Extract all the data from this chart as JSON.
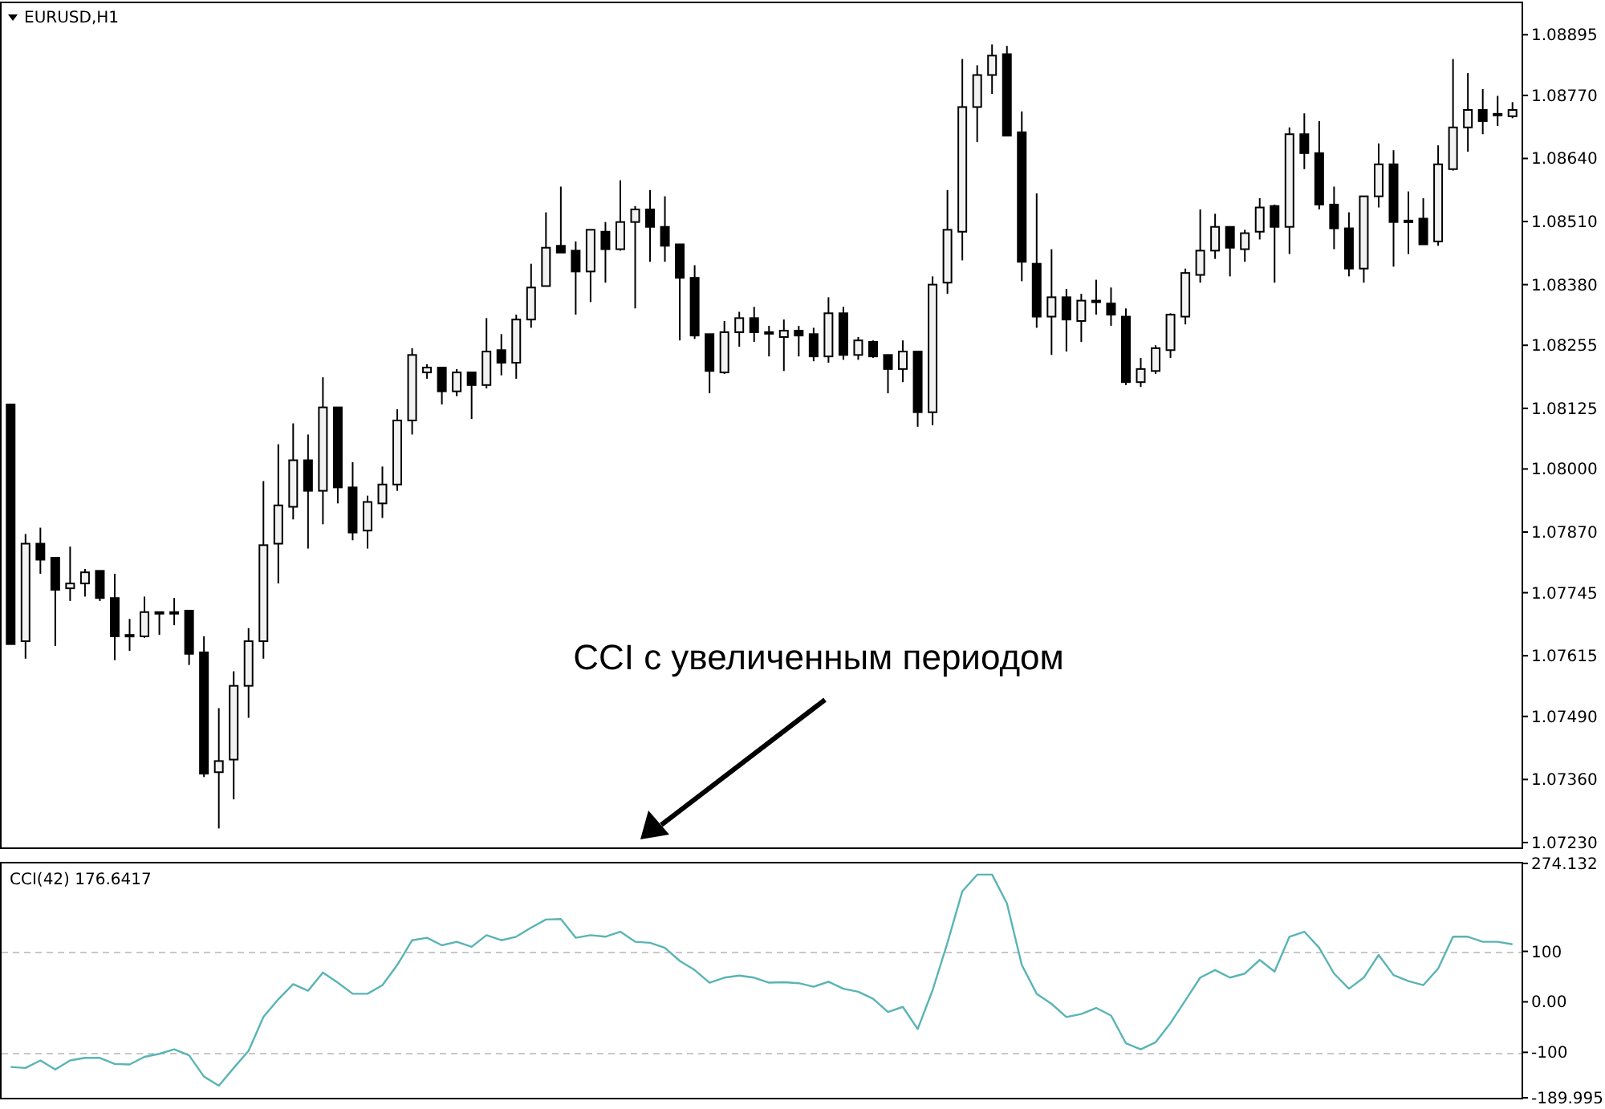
{
  "chart_data": [
    {
      "type": "candlestick",
      "title": "EURUSD,H1",
      "annotations": [
        "CCI с увеличенным периодом"
      ],
      "color": "#000000",
      "tick_labels": "y",
      "categories": [
        null,
        null,
        null,
        null,
        null,
        null,
        null,
        null,
        null,
        null,
        null,
        null,
        null,
        null,
        null,
        null,
        null,
        null,
        null,
        null,
        null,
        null,
        null,
        null,
        null,
        null,
        null,
        null,
        null,
        null,
        null,
        null,
        null,
        null,
        null,
        null,
        null,
        null,
        null,
        null,
        null,
        null,
        null,
        null,
        null,
        null,
        null,
        null,
        null,
        null,
        null,
        null,
        null,
        null,
        null,
        null,
        null,
        null,
        null,
        null,
        null,
        null,
        null,
        null,
        null,
        null,
        null,
        null,
        null,
        null,
        null,
        null,
        null,
        null,
        null,
        null,
        null,
        null,
        null,
        null,
        null,
        null,
        null,
        null,
        null,
        null,
        null,
        null,
        null,
        null,
        null,
        null,
        null,
        null,
        null,
        null,
        null,
        null,
        null,
        null,
        null,
        null
      ],
      "ohlc": [
        [
          1.08133,
          1.08133,
          1.07639,
          1.07639
        ],
        [
          1.07645,
          1.07866,
          1.07609,
          1.07846
        ],
        [
          1.07846,
          1.07879,
          1.07784,
          1.07813
        ],
        [
          1.07817,
          1.07817,
          1.07635,
          1.07751
        ],
        [
          1.07754,
          1.0784,
          1.07728,
          1.07764
        ],
        [
          1.07764,
          1.07794,
          1.07737,
          1.07787
        ],
        [
          1.0779,
          1.0779,
          1.07728,
          1.07734
        ],
        [
          1.07734,
          1.07784,
          1.07606,
          1.07655
        ],
        [
          1.07658,
          1.07691,
          1.07625,
          1.07655
        ],
        [
          1.07655,
          1.07737,
          1.07652,
          1.07705
        ],
        [
          1.07705,
          1.07705,
          1.07658,
          1.07705
        ],
        [
          1.07705,
          1.07734,
          1.07678,
          1.07705
        ],
        [
          1.07708,
          1.07708,
          1.07596,
          1.07619
        ],
        [
          1.07622,
          1.07655,
          1.07365,
          1.07372
        ],
        [
          1.07375,
          1.07507,
          1.07259,
          1.07398
        ],
        [
          1.07401,
          1.07583,
          1.07319,
          1.07553
        ],
        [
          1.07553,
          1.07672,
          1.07487,
          1.07645
        ],
        [
          1.07645,
          1.07975,
          1.07609,
          1.07843
        ],
        [
          1.07846,
          1.08051,
          1.07764,
          1.07925
        ],
        [
          1.07922,
          1.08094,
          1.07896,
          1.08018
        ],
        [
          1.08018,
          1.08071,
          1.07836,
          1.07955
        ],
        [
          1.07955,
          1.08189,
          1.07886,
          1.08127
        ],
        [
          1.08127,
          1.08127,
          1.07929,
          1.07962
        ],
        [
          1.07962,
          1.08014,
          1.07853,
          1.07869
        ],
        [
          1.07873,
          1.07945,
          1.07836,
          1.07932
        ],
        [
          1.07929,
          1.08005,
          1.07899,
          1.07968
        ],
        [
          1.07968,
          1.08123,
          1.07955,
          1.081
        ],
        [
          1.081,
          1.08249,
          1.08071,
          1.08235
        ],
        [
          1.08199,
          1.08216,
          1.08186,
          1.08209
        ],
        [
          1.08209,
          1.08209,
          1.08133,
          1.0816
        ],
        [
          1.0816,
          1.08206,
          1.0815,
          1.08199
        ],
        [
          1.08199,
          1.08199,
          1.08103,
          1.08173
        ],
        [
          1.08173,
          1.08311,
          1.08166,
          1.08242
        ],
        [
          1.08245,
          1.08278,
          1.08193,
          1.08219
        ],
        [
          1.08219,
          1.08318,
          1.08186,
          1.08308
        ],
        [
          1.08308,
          1.08423,
          1.08291,
          1.08374
        ],
        [
          1.08377,
          1.08529,
          1.08377,
          1.08456
        ],
        [
          1.0846,
          1.08582,
          1.08446,
          1.08446
        ],
        [
          1.0845,
          1.08469,
          1.08318,
          1.08407
        ],
        [
          1.08407,
          1.08493,
          1.08344,
          1.08493
        ],
        [
          1.08489,
          1.08509,
          1.08384,
          1.08453
        ],
        [
          1.08453,
          1.08595,
          1.0845,
          1.08509
        ],
        [
          1.08509,
          1.08542,
          1.08331,
          1.08535
        ],
        [
          1.08535,
          1.08575,
          1.08427,
          1.08499
        ],
        [
          1.08499,
          1.08562,
          1.08427,
          1.0846
        ],
        [
          1.08463,
          1.08463,
          1.08265,
          1.08394
        ],
        [
          1.08394,
          1.0842,
          1.08268,
          1.08275
        ],
        [
          1.08278,
          1.08278,
          1.08156,
          1.08202
        ],
        [
          1.08199,
          1.08305,
          1.08196,
          1.08282
        ],
        [
          1.08282,
          1.08324,
          1.08252,
          1.08311
        ],
        [
          1.08311,
          1.08334,
          1.08262,
          1.08282
        ],
        [
          1.08282,
          1.08295,
          1.08232,
          1.08282
        ],
        [
          1.08272,
          1.08308,
          1.08202,
          1.08285
        ],
        [
          1.08285,
          1.08295,
          1.08232,
          1.08275
        ],
        [
          1.08278,
          1.08291,
          1.08222,
          1.08232
        ],
        [
          1.08232,
          1.08354,
          1.08219,
          1.08321
        ],
        [
          1.08321,
          1.08334,
          1.08225,
          1.08235
        ],
        [
          1.08235,
          1.08272,
          1.08225,
          1.08265
        ],
        [
          1.08262,
          1.08265,
          1.08229,
          1.08232
        ],
        [
          1.08235,
          1.08235,
          1.08156,
          1.08206
        ],
        [
          1.08206,
          1.08265,
          1.08179,
          1.08242
        ],
        [
          1.08242,
          1.08242,
          1.08087,
          1.08117
        ],
        [
          1.08117,
          1.08397,
          1.0809,
          1.0838
        ],
        [
          1.08384,
          1.08575,
          1.08361,
          1.08493
        ],
        [
          1.08489,
          1.08845,
          1.0843,
          1.08746
        ],
        [
          1.08746,
          1.08832,
          1.08674,
          1.08812
        ],
        [
          1.08812,
          1.08875,
          1.08773,
          1.08852
        ],
        [
          1.08855,
          1.08872,
          1.08687,
          1.08687
        ],
        [
          1.08694,
          1.08737,
          1.08387,
          1.08427
        ],
        [
          1.08423,
          1.08568,
          1.08291,
          1.08314
        ],
        [
          1.08314,
          1.08453,
          1.08235,
          1.08354
        ],
        [
          1.08354,
          1.08371,
          1.08242,
          1.08308
        ],
        [
          1.08305,
          1.08361,
          1.08262,
          1.08347
        ],
        [
          1.08347,
          1.0839,
          1.08318,
          1.08347
        ],
        [
          1.08341,
          1.08374,
          1.08295,
          1.08318
        ],
        [
          1.08314,
          1.08331,
          1.08173,
          1.08179
        ],
        [
          1.08179,
          1.08229,
          1.08169,
          1.08206
        ],
        [
          1.08202,
          1.08255,
          1.08196,
          1.08249
        ],
        [
          1.08245,
          1.08321,
          1.08229,
          1.08318
        ],
        [
          1.08314,
          1.08413,
          1.08298,
          1.08404
        ],
        [
          1.084,
          1.08535,
          1.08384,
          1.0845
        ],
        [
          1.0845,
          1.08526,
          1.08433,
          1.08499
        ],
        [
          1.08499,
          1.08499,
          1.08397,
          1.08456
        ],
        [
          1.08453,
          1.08493,
          1.08427,
          1.08486
        ],
        [
          1.08489,
          1.08558,
          1.08473,
          1.08539
        ],
        [
          1.08542,
          1.08545,
          1.08384,
          1.08499
        ],
        [
          1.08499,
          1.08704,
          1.08443,
          1.0869
        ],
        [
          1.0869,
          1.08733,
          1.08618,
          1.08651
        ],
        [
          1.08651,
          1.08717,
          1.08535,
          1.08545
        ],
        [
          1.08545,
          1.08582,
          1.08453,
          1.08496
        ],
        [
          1.08496,
          1.08529,
          1.08397,
          1.08413
        ],
        [
          1.08413,
          1.08562,
          1.08384,
          1.08562
        ],
        [
          1.08562,
          1.08671,
          1.08539,
          1.08628
        ],
        [
          1.08628,
          1.08657,
          1.08417,
          1.08509
        ],
        [
          1.08512,
          1.08572,
          1.08443,
          1.08512
        ],
        [
          1.08516,
          1.08558,
          1.08463,
          1.08463
        ],
        [
          1.08469,
          1.08667,
          1.0846,
          1.08628
        ],
        [
          1.08618,
          1.08845,
          1.08615,
          1.08704
        ],
        [
          1.08704,
          1.08816,
          1.08654,
          1.0874
        ],
        [
          1.0874,
          1.08783,
          1.0869,
          1.08717
        ],
        [
          1.08732,
          1.08769,
          1.08707,
          1.08732
        ],
        [
          1.08727,
          1.08756,
          1.08723,
          1.0874
        ]
      ],
      "ylim": [
        1.0722,
        1.0896
      ],
      "yticks": [
        {
          "value": 1.08895,
          "label": "1.08895"
        },
        {
          "value": 1.0877,
          "label": "1.08770"
        },
        {
          "value": 1.0864,
          "label": "1.08640"
        },
        {
          "value": 1.0851,
          "label": "1.08510"
        },
        {
          "value": 1.0838,
          "label": "1.08380"
        },
        {
          "value": 1.08255,
          "label": "1.08255"
        },
        {
          "value": 1.08125,
          "label": "1.08125"
        },
        {
          "value": 1.08,
          "label": "1.08000"
        },
        {
          "value": 1.0787,
          "label": "1.07870"
        },
        {
          "value": 1.07745,
          "label": "1.07745"
        },
        {
          "value": 1.07615,
          "label": "1.07615"
        },
        {
          "value": 1.0749,
          "label": "1.07490"
        },
        {
          "value": 1.0736,
          "label": "1.07360"
        },
        {
          "value": 1.0723,
          "label": "1.07230"
        }
      ]
    },
    {
      "type": "line",
      "title": "CCI(42) 176.6417",
      "tick_labels": "y",
      "categories": [
        null,
        null,
        null,
        null,
        null,
        null,
        null,
        null,
        null,
        null,
        null,
        null,
        null,
        null,
        null,
        null,
        null,
        null,
        null,
        null,
        null,
        null,
        null,
        null,
        null,
        null,
        null,
        null,
        null,
        null,
        null,
        null,
        null,
        null,
        null,
        null,
        null,
        null,
        null,
        null,
        null,
        null,
        null,
        null,
        null,
        null,
        null,
        null,
        null,
        null,
        null,
        null,
        null,
        null,
        null,
        null,
        null,
        null,
        null,
        null,
        null,
        null,
        null,
        null,
        null,
        null,
        null,
        null,
        null,
        null,
        null,
        null,
        null,
        null,
        null,
        null,
        null,
        null,
        null,
        null,
        null,
        null,
        null,
        null,
        null,
        null,
        null,
        null,
        null,
        null,
        null,
        null,
        null,
        null,
        null,
        null,
        null,
        null,
        null,
        null,
        null,
        null
      ],
      "series": [
        {
          "color": "#5ab4b4",
          "values": [
            -129,
            -131,
            -116,
            -134,
            -116,
            -111,
            -111,
            -123,
            -124,
            -109,
            -103,
            -94,
            -106,
            -148,
            -166,
            -131,
            -97,
            -30,
            5,
            35,
            22,
            58,
            38,
            16,
            16,
            33,
            73,
            122,
            127,
            112,
            119,
            109,
            132,
            122,
            129,
            147,
            163,
            164,
            127,
            132,
            129,
            139,
            119,
            117,
            107,
            81,
            63,
            38,
            48,
            52,
            48,
            38,
            39,
            37,
            30,
            40,
            26,
            20,
            6,
            -20,
            -10,
            -54,
            23,
            117,
            219,
            252,
            252,
            195,
            73,
            16,
            -4,
            -30,
            -24,
            -12,
            -27,
            -82,
            -94,
            -80,
            -42,
            3,
            48,
            63,
            48,
            56,
            83,
            60,
            129,
            139,
            107,
            56,
            26,
            48,
            93,
            53,
            41,
            33,
            66,
            129,
            129,
            119,
            119,
            114
          ]
        }
      ],
      "ylim": [
        -189.995,
        274.132
      ],
      "yticks": [
        274.132,
        100,
        {
          "value": 0,
          "label": "0.00"
        },
        -100,
        -189.995
      ],
      "ref_lines": [
        {
          "axis": "y",
          "value": 100,
          "color": "#c8c8c8",
          "line_style": "dashed"
        },
        {
          "axis": "y",
          "value": -100,
          "color": "#c8c8c8",
          "line_style": "dashed"
        }
      ]
    }
  ]
}
